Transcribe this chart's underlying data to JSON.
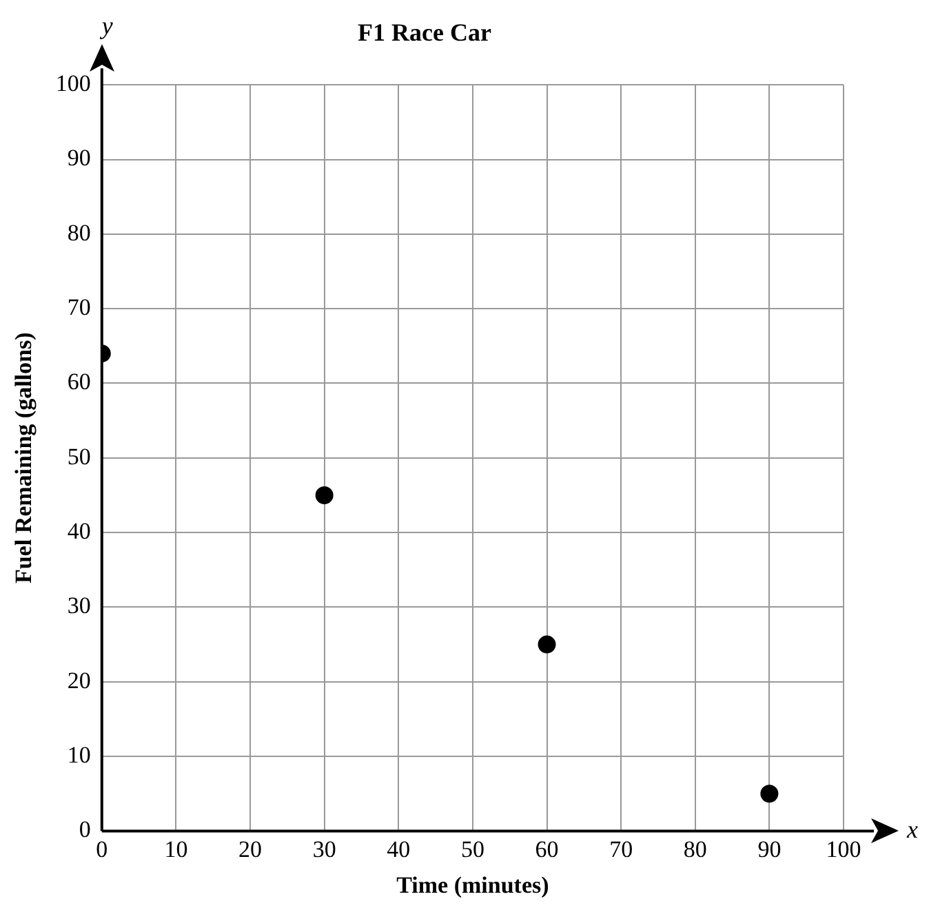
{
  "chart_data": {
    "type": "scatter",
    "title": "F1 Race Car",
    "xlabel": "Time (minutes)",
    "ylabel": "Fuel Remaining (gallons)",
    "annotations": [
      "y",
      "x"
    ],
    "x": [
      0,
      30,
      60,
      90
    ],
    "series": [
      {
        "color": "#000000",
        "values": [
          64,
          45,
          25,
          5
        ]
      }
    ],
    "xlim": [
      0,
      100
    ],
    "xticks": [
      0,
      10,
      20,
      30,
      40,
      50,
      60,
      70,
      80,
      90,
      100
    ],
    "ylim": [
      0,
      100
    ],
    "yticks": [
      0,
      10,
      20,
      30,
      40,
      50,
      60,
      70,
      80,
      90,
      100
    ],
    "grid": true,
    "legend": false,
    "marker": "circle"
  }
}
